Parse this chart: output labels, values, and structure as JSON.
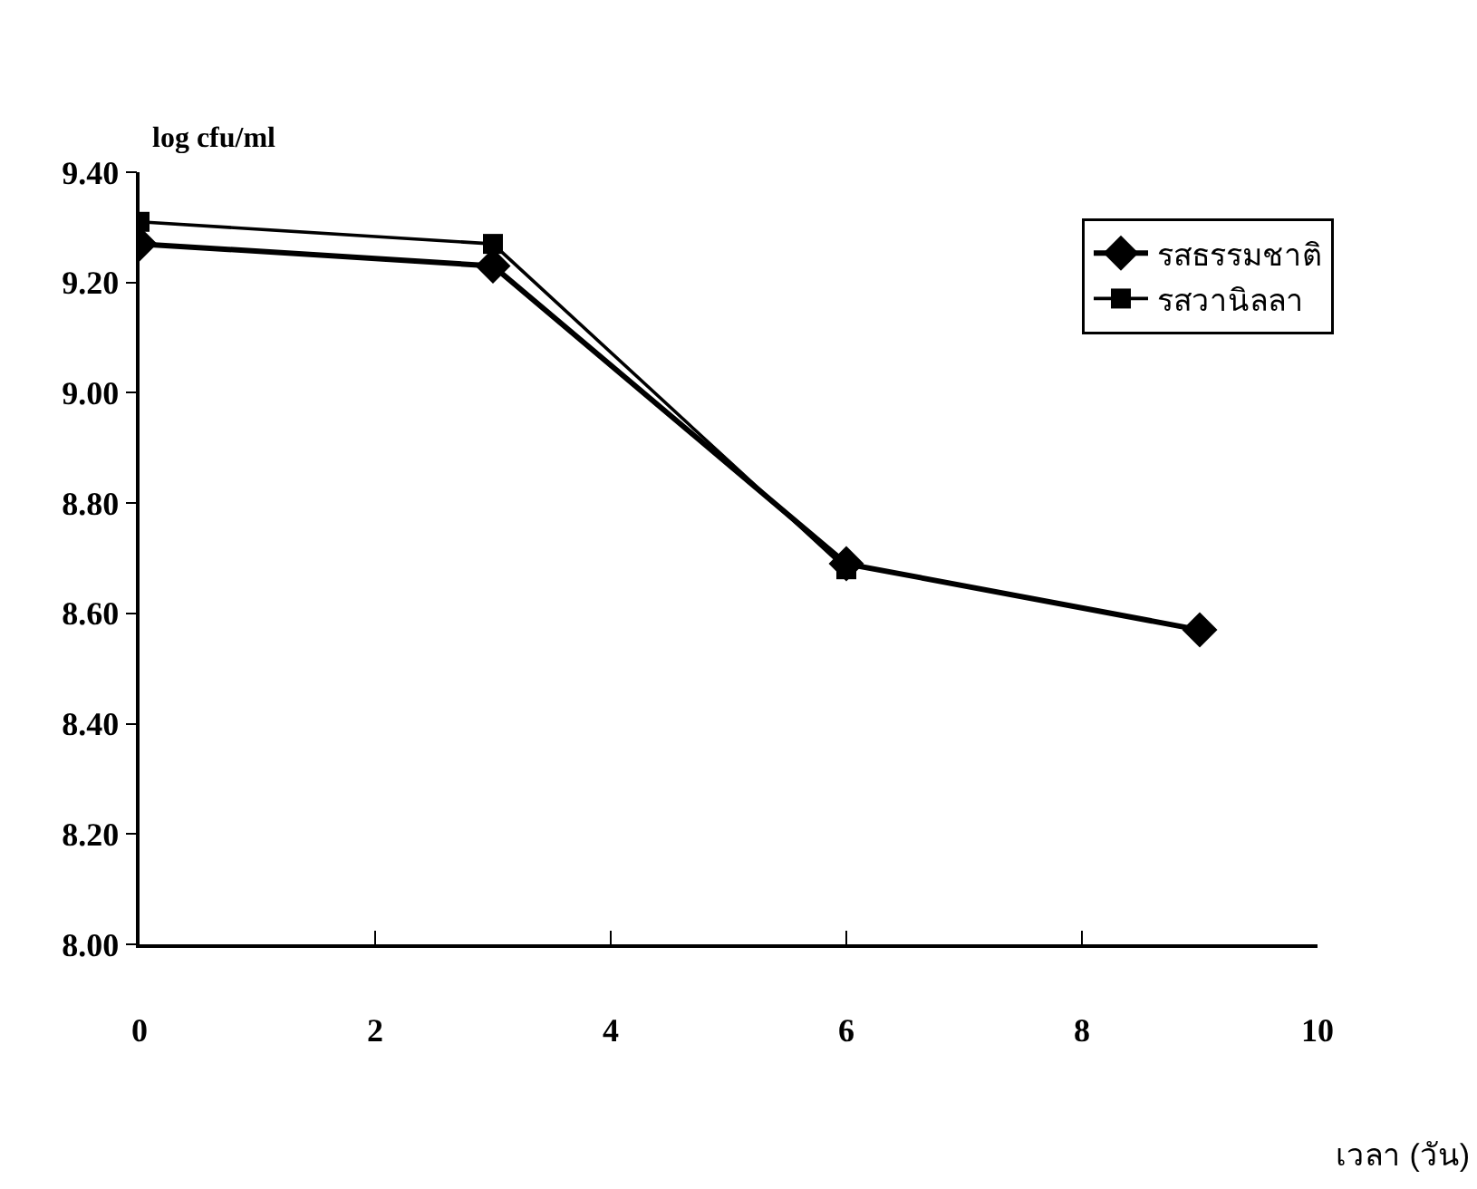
{
  "chart_data": {
    "type": "line",
    "ylabel": "log cfu/ml",
    "xlabel": "เวลา (วัน)",
    "x": [
      0,
      3,
      6,
      9
    ],
    "series": [
      {
        "name": "รสธรรมชาติ",
        "color": "#000000",
        "values": [
          9.27,
          9.23,
          8.69,
          8.57
        ],
        "marker": "diamond"
      },
      {
        "name": "รสวานิลลา",
        "color": "#000000",
        "values": [
          9.31,
          9.27,
          8.68,
          null
        ],
        "marker": "square"
      }
    ],
    "xlim": [
      0,
      10
    ],
    "xticks": [
      0,
      2,
      4,
      6,
      8,
      10
    ],
    "ylim": [
      8.0,
      9.4
    ],
    "yticks": [
      {
        "value": 8.0,
        "label": "8.00"
      },
      {
        "value": 8.2,
        "label": "8.20"
      },
      {
        "value": 8.4,
        "label": "8.40"
      },
      {
        "value": 8.6,
        "label": "8.60"
      },
      {
        "value": 8.8,
        "label": "8.80"
      },
      {
        "value": 9.0,
        "label": "9.00"
      },
      {
        "value": 9.2,
        "label": "9.20"
      },
      {
        "value": 9.4,
        "label": "9.40"
      }
    ],
    "grid": false,
    "legend": "top right",
    "line_style": "solid"
  }
}
